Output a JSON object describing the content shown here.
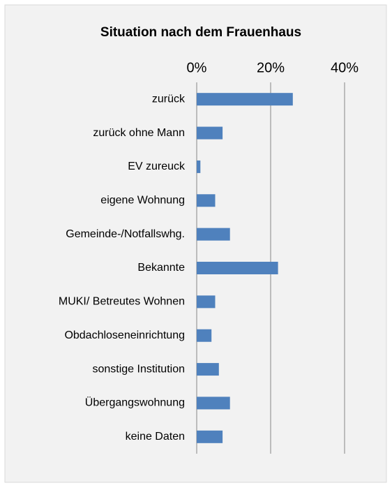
{
  "chart_data": {
    "type": "bar",
    "orientation": "horizontal",
    "title": "Situation nach dem Frauenhaus",
    "categories": [
      "zurück",
      "zurück ohne Mann",
      "EV zureuck",
      "eigene Wohnung",
      "Gemeinde-/Notfallswhg.",
      "Bekannte",
      "MUKI/ Betreutes Wohnen",
      "Obdachloseneinrichtung",
      "sonstige Institution",
      "Übergangswohnung",
      "keine Daten"
    ],
    "values": [
      26,
      7,
      1,
      5,
      9,
      22,
      5,
      4,
      6,
      9,
      7
    ],
    "color": "#4f81bd",
    "xlim": [
      0,
      40
    ],
    "xticks": [
      {
        "value": 0,
        "label": "0%"
      },
      {
        "value": 20,
        "label": "20%"
      },
      {
        "value": 40,
        "label": "40%"
      }
    ],
    "grid": true
  }
}
